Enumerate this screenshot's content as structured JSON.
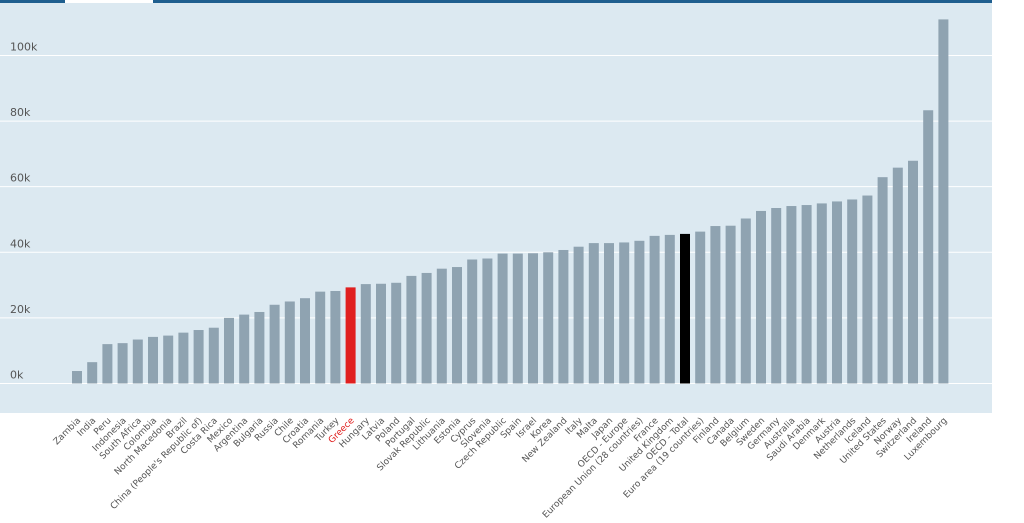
{
  "chart_data": {
    "type": "bar",
    "title": "",
    "xlabel": "",
    "ylabel": "",
    "ylim": [
      -9000,
      116000
    ],
    "yticks": [
      0,
      20000,
      40000,
      60000,
      80000,
      100000
    ],
    "ytick_labels": [
      "0k",
      "20k",
      "40k",
      "60k",
      "80k",
      "100k"
    ],
    "grid": true,
    "legend": "none",
    "colors": {
      "default": "#8fa3b1",
      "highlight_greece": "#e02020",
      "highlight_oecd": "#000000",
      "plot_bg": "#dce9f1",
      "label": "#555555",
      "greece_label": "#e02020"
    },
    "highlight": {
      "Greece": "highlight_greece",
      "OECD - Total": "highlight_oecd"
    },
    "categories": [
      "Zambia",
      "India",
      "Peru",
      "Indonesia",
      "South Africa",
      "Colombia",
      "North Macedonia",
      "Brazil",
      "China (People's Republic of)",
      "Costa Rica",
      "Mexico",
      "Argentina",
      "Bulgaria",
      "Russia",
      "Chile",
      "Croatia",
      "Romania",
      "Turkey",
      "Greece",
      "Hungary",
      "Latvia",
      "Poland",
      "Portugal",
      "Slovak Republic",
      "Lithuania",
      "Estonia",
      "Cyprus",
      "Slovenia",
      "Czech Republic",
      "Spain",
      "Israel",
      "Korea",
      "New Zealand",
      "Italy",
      "Malta",
      "Japan",
      "OECD - Europe",
      "European Union (28 countries)",
      "France",
      "United Kingdom",
      "OECD - Total",
      "Euro area (19 countries)",
      "Finland",
      "Canada",
      "Belgium",
      "Sweden",
      "Germany",
      "Australia",
      "Saudi Arabia",
      "Denmark",
      "Austria",
      "Netherlands",
      "Iceland",
      "United States",
      "Norway",
      "Switzerland",
      "Ireland",
      "Luxembourg"
    ],
    "values": [
      3800,
      6500,
      12000,
      12300,
      13400,
      14200,
      14600,
      15500,
      16300,
      17000,
      20000,
      21000,
      21800,
      24000,
      25000,
      26000,
      28000,
      28200,
      29300,
      30300,
      30400,
      30700,
      32800,
      33700,
      35000,
      35500,
      37800,
      38100,
      39600,
      39600,
      39700,
      40000,
      40700,
      41700,
      42800,
      42800,
      43000,
      43500,
      45000,
      45300,
      45600,
      46300,
      48000,
      48100,
      50300,
      52600,
      53500,
      54100,
      54400,
      54900,
      55500,
      56100,
      57300,
      62900,
      65800,
      67900,
      83300,
      111000
    ]
  }
}
